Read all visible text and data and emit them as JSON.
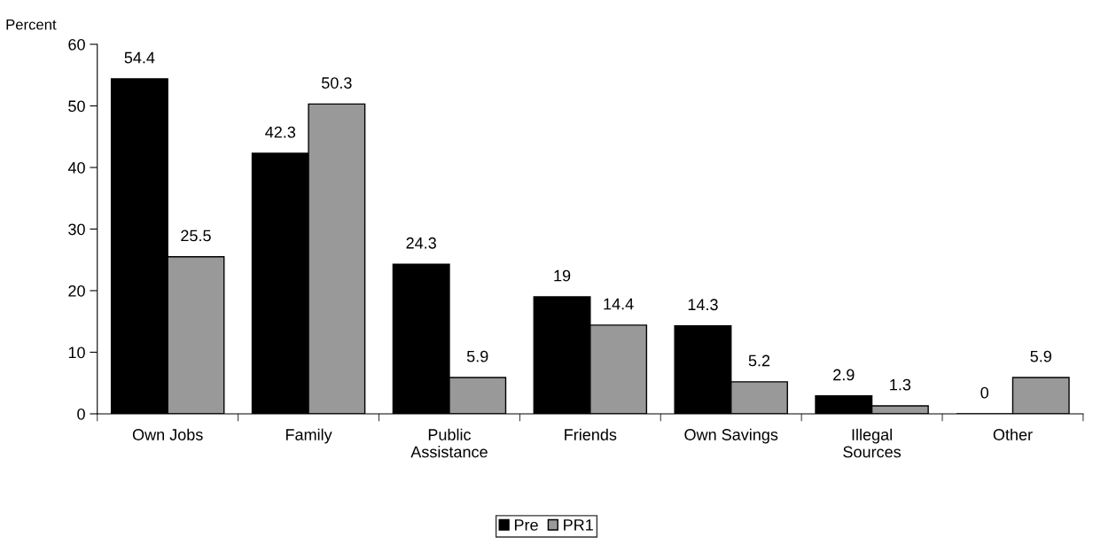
{
  "chart_data": {
    "type": "bar",
    "ylabel": "Percent",
    "categories": [
      "Own Jobs",
      "Family",
      "Public\nAssistance",
      "Friends",
      "Own Savings",
      "Illegal\nSources",
      "Other"
    ],
    "series": [
      {
        "name": "Pre",
        "color": "#000000",
        "values": [
          54.4,
          42.3,
          24.3,
          19,
          14.3,
          2.9,
          0
        ]
      },
      {
        "name": "PR1",
        "color": "#999999",
        "values": [
          25.5,
          50.3,
          5.9,
          14.4,
          5.2,
          1.3,
          5.9
        ]
      }
    ],
    "ylim": [
      0,
      60
    ],
    "yticks": [
      0,
      10,
      20,
      30,
      40,
      50,
      60
    ],
    "data_labels": true,
    "grid": false,
    "legend": "bottom"
  }
}
